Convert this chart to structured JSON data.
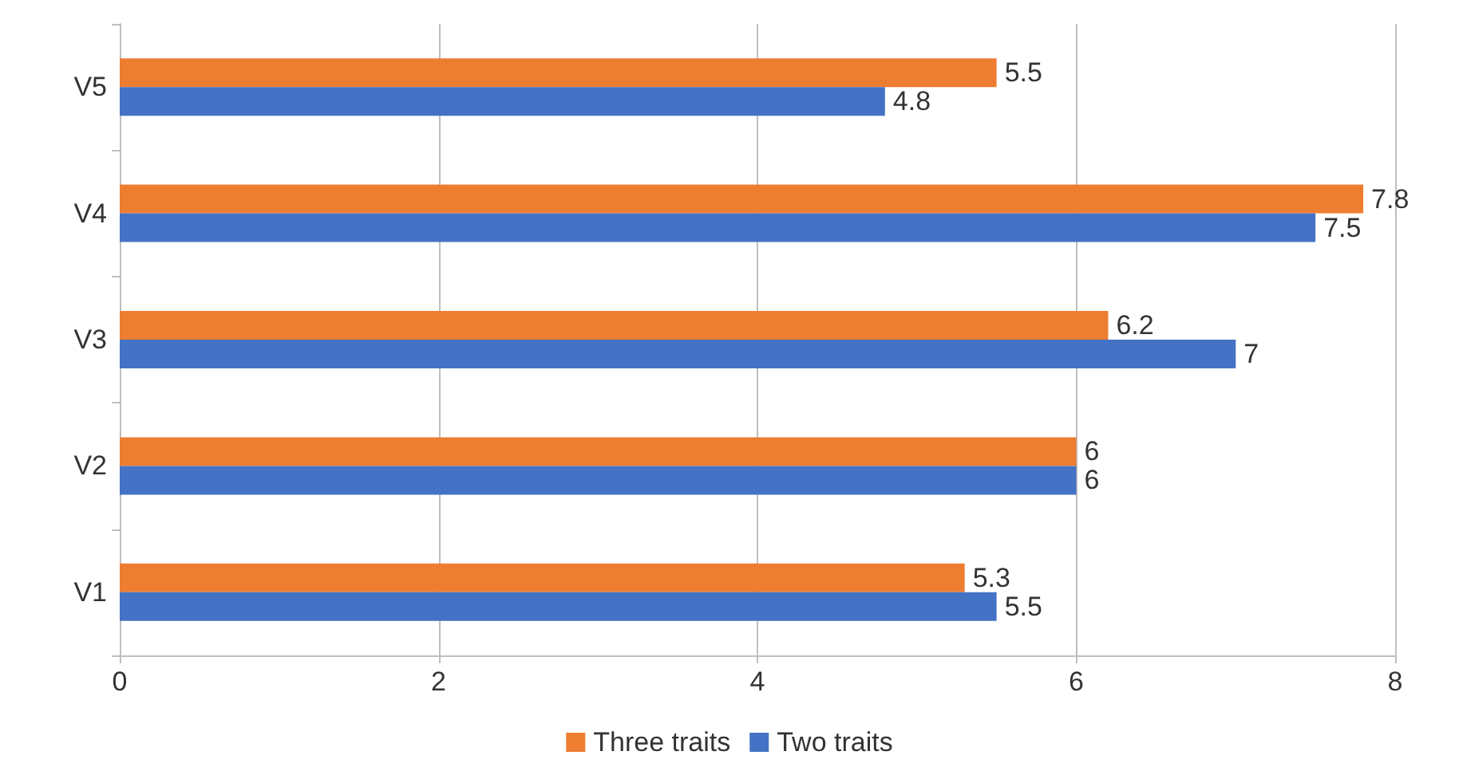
{
  "chart_data": {
    "type": "bar",
    "orientation": "horizontal",
    "categories": [
      "V5",
      "V4",
      "V3",
      "V2",
      "V1"
    ],
    "series": [
      {
        "name": "Three traits",
        "color": "#ed7d31",
        "values": [
          5.5,
          7.8,
          6.2,
          6,
          5.3
        ]
      },
      {
        "name": "Two traits",
        "color": "#4472c4",
        "values": [
          4.8,
          7.5,
          7,
          6,
          5.5
        ]
      }
    ],
    "xlim": [
      0,
      8
    ],
    "xticks": [
      0,
      2,
      4,
      6,
      8
    ],
    "grid": "x",
    "legend": "bottom",
    "data_labels": true
  }
}
